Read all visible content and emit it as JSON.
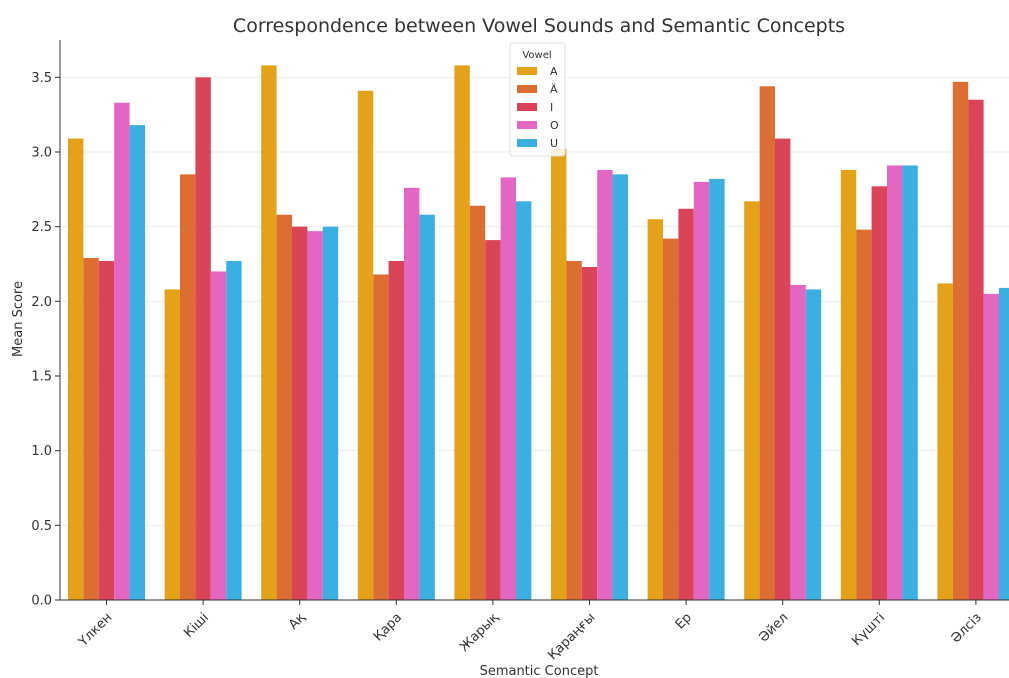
{
  "chart_data": {
    "type": "bar",
    "title": "Correspondence between Vowel Sounds and Semantic Concepts",
    "xlabel": "Semantic Concept",
    "ylabel": "Mean Score",
    "ylim": [
      0,
      3.75
    ],
    "yticks": [
      0.0,
      0.5,
      1.0,
      1.5,
      2.0,
      2.5,
      3.0,
      3.5
    ],
    "ytick_labels": [
      "0.0",
      "0.5",
      "1.0",
      "1.5",
      "2.0",
      "2.5",
      "3.0",
      "3.5"
    ],
    "grid": "horizontal",
    "legend": {
      "title": "Vowel",
      "placement": "top-center"
    },
    "categories": [
      "Үлкен",
      "Кіші",
      "Ақ",
      "Қара",
      "Жарық",
      "Қараңғы",
      "Ер",
      "Әйел",
      "Күшті",
      "Әлсіз"
    ],
    "series": [
      {
        "name": "A",
        "color": "#E3A21A",
        "values": [
          3.09,
          2.08,
          3.58,
          3.41,
          3.58,
          3.02,
          2.55,
          2.67,
          2.88,
          2.12
        ]
      },
      {
        "name": "Ä",
        "color": "#DC6E34",
        "values": [
          2.29,
          2.85,
          2.58,
          2.18,
          2.64,
          2.27,
          2.42,
          3.44,
          2.48,
          3.47
        ]
      },
      {
        "name": "I",
        "color": "#DA4459",
        "values": [
          2.27,
          3.5,
          2.5,
          2.27,
          2.41,
          2.23,
          2.62,
          3.09,
          2.77,
          3.35
        ]
      },
      {
        "name": "O",
        "color": "#E366C2",
        "values": [
          3.33,
          2.2,
          2.47,
          2.76,
          2.83,
          2.88,
          2.8,
          2.11,
          2.91,
          2.05
        ]
      },
      {
        "name": "U",
        "color": "#3AAFE0",
        "values": [
          3.18,
          2.27,
          2.5,
          2.58,
          2.67,
          2.85,
          2.82,
          2.08,
          2.91,
          2.09
        ]
      }
    ]
  }
}
